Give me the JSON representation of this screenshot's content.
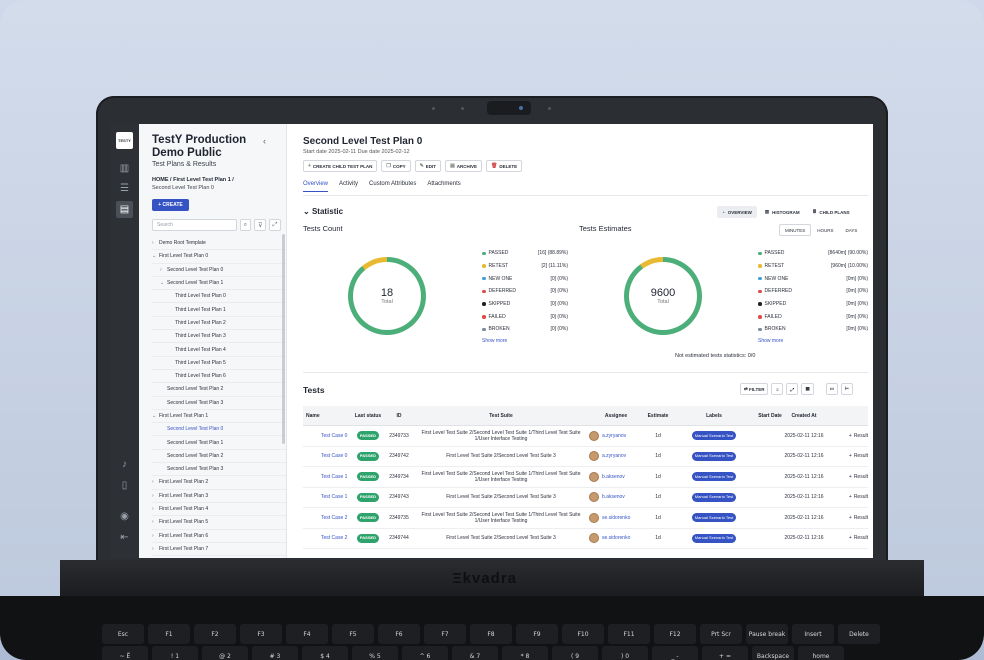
{
  "device": {
    "brand": "kvadra"
  },
  "rail": {
    "logo": "TESTY",
    "icons": [
      "chart-icon",
      "list-icon",
      "test-plans-icon",
      "bell-icon",
      "book-icon",
      "user-icon",
      "logout-icon"
    ]
  },
  "project": {
    "title": "TestY Production Demo Public",
    "subtitle": "Test Plans & Results",
    "breadcrumb": "HOME / First Level Test Plan 1 /",
    "breadcrumb_sub": "Second Level Test Plan 0",
    "create_label": "+ CREATE",
    "search_placeholder": "Search"
  },
  "tree": [
    {
      "label": "Demo Root Template",
      "indent": 0,
      "chev": "›"
    },
    {
      "label": "First Level Test Plan 0",
      "indent": 0,
      "chev": "⌄"
    },
    {
      "label": "Second Level Test Plan 0",
      "indent": 1,
      "chev": "›"
    },
    {
      "label": "Second Level Test Plan 1",
      "indent": 1,
      "chev": "⌄"
    },
    {
      "label": "Third Level Test Plan 0",
      "indent": 2,
      "chev": ""
    },
    {
      "label": "Third Level Test Plan 1",
      "indent": 2,
      "chev": ""
    },
    {
      "label": "Third Level Test Plan 2",
      "indent": 2,
      "chev": ""
    },
    {
      "label": "Third Level Test Plan 3",
      "indent": 2,
      "chev": ""
    },
    {
      "label": "Third Level Test Plan 4",
      "indent": 2,
      "chev": ""
    },
    {
      "label": "Third Level Test Plan 5",
      "indent": 2,
      "chev": ""
    },
    {
      "label": "Third Level Test Plan 6",
      "indent": 2,
      "chev": ""
    },
    {
      "label": "Second Level Test Plan 2",
      "indent": 1,
      "chev": ""
    },
    {
      "label": "Second Level Test Plan 3",
      "indent": 1,
      "chev": ""
    },
    {
      "label": "First Level Test Plan 1",
      "indent": 0,
      "chev": "⌄"
    },
    {
      "label": "Second Level Test Plan 0",
      "indent": 1,
      "chev": "",
      "selected": true
    },
    {
      "label": "Second Level Test Plan 1",
      "indent": 1,
      "chev": ""
    },
    {
      "label": "Second Level Test Plan 2",
      "indent": 1,
      "chev": ""
    },
    {
      "label": "Second Level Test Plan 3",
      "indent": 1,
      "chev": ""
    },
    {
      "label": "First Level Test Plan 2",
      "indent": 0,
      "chev": "›"
    },
    {
      "label": "First Level Test Plan 3",
      "indent": 0,
      "chev": "›"
    },
    {
      "label": "First Level Test Plan 4",
      "indent": 0,
      "chev": "›"
    },
    {
      "label": "First Level Test Plan 5",
      "indent": 0,
      "chev": "›"
    },
    {
      "label": "First Level Test Plan 6",
      "indent": 0,
      "chev": "›"
    },
    {
      "label": "First Level Test Plan 7",
      "indent": 0,
      "chev": "›"
    }
  ],
  "plan": {
    "title": "Second Level Test Plan 0",
    "dates": "Start date 2025-02-11   Due date 2025-02-12",
    "actions": [
      {
        "label": "CREATE CHILD TEST PLAN",
        "icon": "+"
      },
      {
        "label": "COPY",
        "icon": "❐"
      },
      {
        "label": "EDIT",
        "icon": "✎"
      },
      {
        "label": "ARCHIVE",
        "icon": "▤"
      },
      {
        "label": "DELETE",
        "icon": "🗑",
        "danger": true
      }
    ],
    "tabs": [
      "Overview",
      "Activity",
      "Custom Attributes",
      "Attachments"
    ]
  },
  "statistic": {
    "title": "Statistic",
    "views": [
      "OVERVIEW",
      "HISTOGRAM",
      "CHILD PLANS"
    ],
    "count_title": "Tests Count",
    "estimates_title": "Tests Estimates",
    "units": [
      "MINUTES",
      "HOURS",
      "DAYS"
    ],
    "count_total": "18",
    "estimates_total": "9600",
    "total_label": "Total",
    "count_passed_fraction": 0.8889,
    "estimates_passed_fraction": 0.9,
    "colors": {
      "passed": "#4caf7a",
      "retest": "#e8b931",
      "new": "#4fb36d",
      "deferred": "#e14a4a",
      "skipped": "#222222",
      "failed": "#e14a4a",
      "broken": "#7a8a9a"
    },
    "count_legend": [
      {
        "name": "PASSED",
        "value": "[16] (88.89%)",
        "color": "#4caf7a"
      },
      {
        "name": "RETEST",
        "value": "[2] (11.11%)",
        "color": "#e8b931"
      },
      {
        "name": "NEW ONE",
        "value": "[0] (0%)",
        "color": "#3fa0d8"
      },
      {
        "name": "DEFERRED",
        "value": "[0] (0%)",
        "color": "#e14a4a"
      },
      {
        "name": "SKIPPED",
        "value": "[0] (0%)",
        "color": "#222222"
      },
      {
        "name": "FAILED",
        "value": "[0] (0%)",
        "color": "#e14a4a"
      },
      {
        "name": "BROKEN",
        "value": "[0] (0%)",
        "color": "#7a8a9a"
      }
    ],
    "est_legend": [
      {
        "name": "PASSED",
        "value": "[8640m] (90.00%)",
        "color": "#4caf7a"
      },
      {
        "name": "RETEST",
        "value": "[960m] (10.00%)",
        "color": "#e8b931"
      },
      {
        "name": "NEW ONE",
        "value": "[0m] (0%)",
        "color": "#3fa0d8"
      },
      {
        "name": "DEFERRED",
        "value": "[0m] (0%)",
        "color": "#e14a4a"
      },
      {
        "name": "SKIPPED",
        "value": "[0m] (0%)",
        "color": "#222222"
      },
      {
        "name": "FAILED",
        "value": "[0m] (0%)",
        "color": "#e14a4a"
      },
      {
        "name": "BROKEN",
        "value": "[0m] (0%)",
        "color": "#7a8a9a"
      }
    ],
    "show_more": "Show more",
    "not_estimated": "Not estimated tests statistics: 0/0"
  },
  "tests": {
    "title": "Tests",
    "filter_label": "FILTER",
    "columns": [
      "Name",
      "Last status",
      "ID",
      "Test Suite",
      "Assignee",
      "Estimate",
      "Labels",
      "Start Date",
      "Created At",
      ""
    ],
    "rows": [
      {
        "name": "Test Case 0",
        "status": "PASSED",
        "id": "2349733",
        "suite": "First Level Test Suite 2/Second Level Test Suite 1/Third Level Test Suite 1/User Interface Testing",
        "assignee": "a.zyryanov",
        "estimate": "1d",
        "label": "Manual Scenario Test",
        "created": "2025-02-11 12:16",
        "result": "Result"
      },
      {
        "name": "Test Case 0",
        "status": "PASSED",
        "id": "2349742",
        "suite": "First Level Test Suite 2/Second Level Test Suite 3",
        "assignee": "a.zyryanov",
        "estimate": "1d",
        "label": "Manual Scenario Test",
        "created": "2025-02-11 12:16",
        "result": "Result"
      },
      {
        "name": "Test Case 1",
        "status": "PASSED",
        "id": "2349734",
        "suite": "First Level Test Suite 2/Second Level Test Suite 1/Third Level Test Suite 1/User Interface Testing",
        "assignee": "b.aksenov",
        "estimate": "1d",
        "label": "Manual Scenario Test",
        "created": "2025-02-11 12:16",
        "result": "Result"
      },
      {
        "name": "Test Case 1",
        "status": "PASSED",
        "id": "2349743",
        "suite": "First Level Test Suite 2/Second Level Test Suite 3",
        "assignee": "b.aksenov",
        "estimate": "1d",
        "label": "Manual Scenario Test",
        "created": "2025-02-11 12:16",
        "result": "Result"
      },
      {
        "name": "Test Case 2",
        "status": "PASSED",
        "id": "2349735",
        "suite": "First Level Test Suite 2/Second Level Test Suite 1/Third Level Test Suite 1/User Interface Testing",
        "assignee": "se.sidorenko",
        "estimate": "1d",
        "label": "Manual Scenario Test",
        "created": "2025-02-11 12:16",
        "result": "Result"
      },
      {
        "name": "Test Case 2",
        "status": "PASSED",
        "id": "2349744",
        "suite": "First Level Test Suite 2/Second Level Test Suite 3",
        "assignee": "se.sidorenko",
        "estimate": "1d",
        "label": "Manual Scenario Test",
        "created": "2025-02-11 12:16",
        "result": "Result"
      }
    ]
  },
  "keyboard": {
    "row1": [
      "Esc",
      "F1",
      "F2",
      "F3",
      "F4",
      "F5",
      "F6",
      "F7",
      "F8",
      "F9",
      "F10",
      "F11",
      "F12",
      "Prt Scr",
      "Pause break",
      "Insert",
      "Delete"
    ],
    "row2": [
      "~ Ё",
      "! 1",
      "@ 2",
      "# 3",
      "$ 4",
      "% 5",
      "^ 6",
      "& 7",
      "* 8",
      "( 9",
      ") 0",
      "_ -",
      "+ =",
      "Backspace",
      "home"
    ]
  }
}
